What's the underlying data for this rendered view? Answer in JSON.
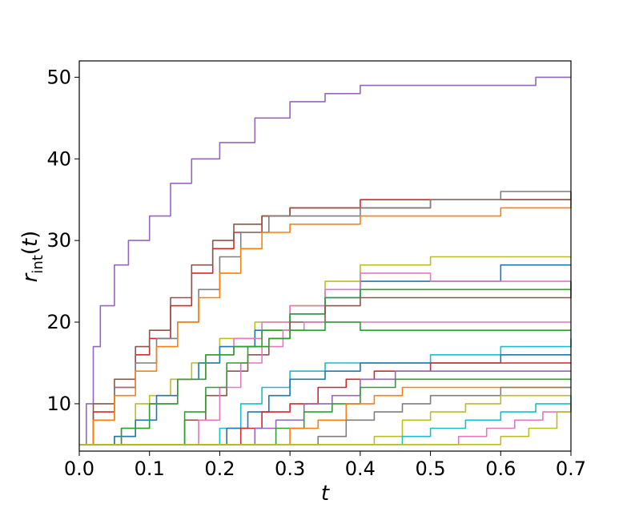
{
  "chart_data": {
    "type": "line",
    "title": "",
    "xlabel": "t",
    "ylabel": {
      "base": "r",
      "sub": "int",
      "arg": "(t)"
    },
    "xlim": [
      0.0,
      0.7
    ],
    "ylim": [
      4.2,
      52
    ],
    "xticks": [
      0.0,
      0.1,
      0.2,
      0.3,
      0.4,
      0.5,
      0.6,
      0.7
    ],
    "xtick_labels": [
      "0.0",
      "0.1",
      "0.2",
      "0.3",
      "0.4",
      "0.5",
      "0.6",
      "0.7"
    ],
    "yticks": [
      10,
      20,
      30,
      40,
      50
    ],
    "ytick_labels": [
      "10",
      "20",
      "30",
      "40",
      "50"
    ],
    "grid": false,
    "legend": "none",
    "series": [
      {
        "color": "#9467bd",
        "x": [
          0,
          0.01,
          0.02,
          0.03,
          0.05,
          0.07,
          0.1,
          0.13,
          0.16,
          0.2,
          0.25,
          0.3,
          0.35,
          0.4,
          0.5,
          0.6,
          0.65,
          0.7
        ],
        "values": [
          5,
          10,
          17,
          22,
          27,
          30,
          33,
          37,
          40,
          42,
          45,
          47,
          48,
          49,
          49,
          49,
          50,
          50
        ]
      },
      {
        "color": "#d62728",
        "x": [
          0,
          0.02,
          0.05,
          0.08,
          0.1,
          0.13,
          0.16,
          0.19,
          0.22,
          0.26,
          0.3,
          0.4,
          0.5,
          0.6,
          0.7
        ],
        "values": [
          5,
          9,
          12,
          16,
          18,
          22,
          26,
          29,
          31,
          33,
          34,
          35,
          35,
          35,
          35
        ]
      },
      {
        "color": "#8c564b",
        "x": [
          0,
          0.02,
          0.05,
          0.08,
          0.1,
          0.13,
          0.16,
          0.19,
          0.22,
          0.26,
          0.3,
          0.4,
          0.5,
          0.6,
          0.7
        ],
        "values": [
          5,
          10,
          13,
          17,
          19,
          23,
          27,
          30,
          32,
          33,
          34,
          34,
          35,
          35,
          36
        ]
      },
      {
        "color": "#7f7f7f",
        "x": [
          0,
          0.02,
          0.05,
          0.08,
          0.11,
          0.14,
          0.17,
          0.2,
          0.23,
          0.27,
          0.3,
          0.4,
          0.5,
          0.6,
          0.7
        ],
        "values": [
          5,
          8,
          12,
          15,
          18,
          20,
          24,
          28,
          31,
          33,
          33,
          34,
          35,
          36,
          36
        ]
      },
      {
        "color": "#ff7f0e",
        "x": [
          0,
          0.02,
          0.05,
          0.08,
          0.11,
          0.14,
          0.17,
          0.2,
          0.23,
          0.26,
          0.3,
          0.4,
          0.5,
          0.6,
          0.7
        ],
        "values": [
          5,
          8,
          11,
          14,
          17,
          20,
          23,
          26,
          29,
          31,
          32,
          33,
          33,
          34,
          35
        ]
      },
      {
        "color": "#bcbd22",
        "x": [
          0,
          0.05,
          0.08,
          0.1,
          0.13,
          0.16,
          0.2,
          0.25,
          0.3,
          0.35,
          0.4,
          0.5,
          0.6,
          0.7
        ],
        "values": [
          5,
          6,
          10,
          11,
          13,
          15,
          18,
          20,
          22,
          25,
          27,
          28,
          28,
          28
        ]
      },
      {
        "color": "#1f77b4",
        "x": [
          0,
          0.05,
          0.08,
          0.11,
          0.14,
          0.17,
          0.2,
          0.25,
          0.3,
          0.35,
          0.4,
          0.5,
          0.6,
          0.7
        ],
        "values": [
          5,
          6,
          8,
          11,
          13,
          15,
          17,
          19,
          21,
          23,
          25,
          25,
          27,
          27
        ]
      },
      {
        "color": "#e377c2",
        "x": [
          0,
          0.06,
          0.1,
          0.14,
          0.18,
          0.22,
          0.26,
          0.3,
          0.35,
          0.4,
          0.5,
          0.6,
          0.7
        ],
        "values": [
          5,
          7,
          10,
          13,
          16,
          18,
          20,
          22,
          24,
          26,
          25,
          25,
          24
        ]
      },
      {
        "color": "#2ca02c",
        "x": [
          0,
          0.06,
          0.1,
          0.14,
          0.18,
          0.22,
          0.26,
          0.3,
          0.35,
          0.4,
          0.5,
          0.6,
          0.7
        ],
        "values": [
          5,
          7,
          10,
          13,
          16,
          17,
          19,
          21,
          23,
          24,
          24,
          24,
          25
        ]
      },
      {
        "color": "#8c564b",
        "x": [
          0,
          0.12,
          0.15,
          0.18,
          0.21,
          0.24,
          0.27,
          0.3,
          0.35,
          0.4,
          0.5,
          0.6,
          0.7
        ],
        "values": [
          5,
          5,
          8,
          11,
          14,
          16,
          18,
          20,
          22,
          23,
          23,
          23,
          24
        ]
      },
      {
        "color": "#e377c2",
        "x": [
          0,
          0.14,
          0.17,
          0.2,
          0.23,
          0.26,
          0.29,
          0.32,
          0.4,
          0.5,
          0.6,
          0.7
        ],
        "values": [
          5,
          5,
          8,
          12,
          15,
          17,
          19,
          20,
          20,
          20,
          20,
          20
        ]
      },
      {
        "color": "#2ca02c",
        "x": [
          0,
          0.12,
          0.15,
          0.18,
          0.21,
          0.24,
          0.27,
          0.3,
          0.35,
          0.4,
          0.5,
          0.6,
          0.7
        ],
        "values": [
          5,
          5,
          9,
          12,
          15,
          17,
          18,
          19,
          20,
          19,
          19,
          19,
          19
        ]
      },
      {
        "color": "#17becf",
        "x": [
          0,
          0.18,
          0.2,
          0.23,
          0.26,
          0.3,
          0.35,
          0.4,
          0.5,
          0.6,
          0.7
        ],
        "values": [
          5,
          5,
          7,
          10,
          12,
          14,
          15,
          15,
          16,
          17,
          18
        ]
      },
      {
        "color": "#1f77b4",
        "x": [
          0,
          0.18,
          0.21,
          0.24,
          0.27,
          0.3,
          0.35,
          0.4,
          0.5,
          0.6,
          0.7
        ],
        "values": [
          5,
          5,
          7,
          9,
          11,
          13,
          14,
          15,
          15,
          16,
          16
        ]
      },
      {
        "color": "#d62728",
        "x": [
          0,
          0.2,
          0.23,
          0.26,
          0.3,
          0.34,
          0.38,
          0.42,
          0.5,
          0.6,
          0.7
        ],
        "values": [
          5,
          5,
          7,
          9,
          10,
          12,
          13,
          14,
          15,
          15,
          15
        ]
      },
      {
        "color": "#9467bd",
        "x": [
          0,
          0.22,
          0.25,
          0.28,
          0.32,
          0.36,
          0.4,
          0.45,
          0.5,
          0.6,
          0.7
        ],
        "values": [
          5,
          5,
          7,
          8,
          10,
          11,
          13,
          14,
          14,
          14,
          14
        ]
      },
      {
        "color": "#2ca02c",
        "x": [
          0,
          0.25,
          0.28,
          0.32,
          0.36,
          0.4,
          0.45,
          0.5,
          0.6,
          0.7
        ],
        "values": [
          5,
          5,
          7,
          9,
          10,
          12,
          13,
          13,
          13,
          13
        ]
      },
      {
        "color": "#ff7f0e",
        "x": [
          0,
          0.26,
          0.3,
          0.34,
          0.38,
          0.42,
          0.46,
          0.5,
          0.6,
          0.7
        ],
        "values": [
          5,
          5,
          7,
          8,
          10,
          11,
          12,
          12,
          12,
          12
        ]
      },
      {
        "color": "#7f7f7f",
        "x": [
          0,
          0.3,
          0.34,
          0.38,
          0.42,
          0.46,
          0.5,
          0.55,
          0.6,
          0.7
        ],
        "values": [
          5,
          5,
          6,
          8,
          9,
          10,
          11,
          11,
          12,
          12
        ]
      },
      {
        "color": "#bcbd22",
        "x": [
          0,
          0.38,
          0.42,
          0.46,
          0.5,
          0.55,
          0.6,
          0.7
        ],
        "values": [
          5,
          5,
          6,
          8,
          9,
          10,
          11,
          11
        ]
      },
      {
        "color": "#17becf",
        "x": [
          0,
          0.42,
          0.46,
          0.5,
          0.55,
          0.6,
          0.65,
          0.7
        ],
        "values": [
          5,
          5,
          6,
          7,
          8,
          9,
          10,
          11
        ]
      },
      {
        "color": "#e377c2",
        "x": [
          0,
          0.5,
          0.54,
          0.58,
          0.62,
          0.66,
          0.7
        ],
        "values": [
          5,
          5,
          6,
          7,
          8,
          9,
          10
        ]
      },
      {
        "color": "#bcbd22",
        "x": [
          0,
          0.52,
          0.56,
          0.6,
          0.64,
          0.68,
          0.7
        ],
        "values": [
          5,
          5,
          5,
          6,
          7,
          9,
          10
        ]
      }
    ]
  }
}
